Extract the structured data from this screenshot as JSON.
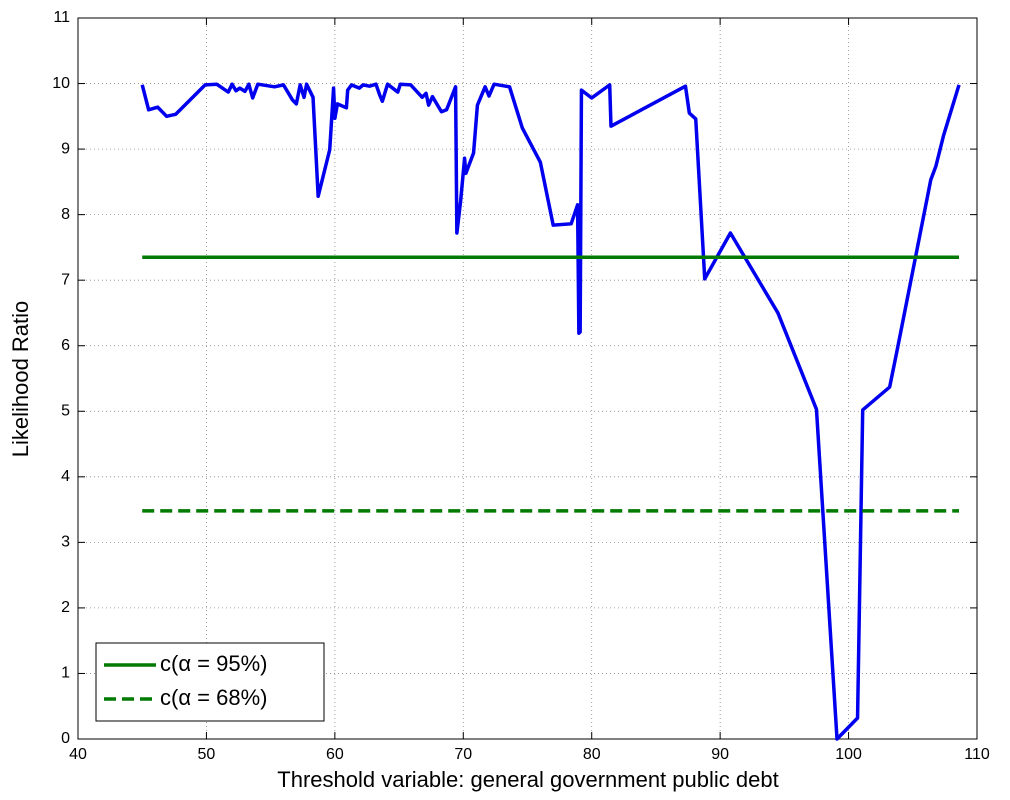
{
  "chart_data": {
    "type": "line",
    "xlabel": "Threshold variable: general government public debt",
    "ylabel": "Likelihood Ratio",
    "xlim": [
      40,
      110
    ],
    "xticks": [
      40,
      50,
      60,
      70,
      80,
      90,
      100,
      110
    ],
    "ylim": [
      0,
      11
    ],
    "yticks": [
      0,
      1,
      2,
      3,
      4,
      5,
      6,
      7,
      8,
      9,
      10,
      11
    ],
    "grid": true,
    "legend": "lower left",
    "series": [
      {
        "color": "#0000ee",
        "dashed": false,
        "x": [
          45.0,
          45.5,
          46.2,
          46.9,
          47.6,
          49.9,
          50.8,
          51.7,
          52.0,
          52.3,
          52.6,
          53.0,
          53.3,
          53.6,
          54.0,
          55.3,
          56.0,
          56.7,
          57.0,
          57.3,
          57.6,
          57.8,
          58.3,
          58.7,
          59.6,
          59.9,
          60.0,
          60.2,
          60.9,
          61.0,
          61.3,
          61.9,
          62.2,
          62.7,
          63.2,
          63.5,
          63.7,
          64.1,
          64.9,
          65.1,
          65.9,
          66.8,
          67.1,
          67.3,
          67.6,
          68.3,
          68.7,
          69.4,
          69.5,
          69.8,
          70.1,
          70.2,
          70.8,
          71.1,
          71.7,
          72.0,
          72.4,
          73.6,
          74.6,
          76.0,
          77.0,
          78.4,
          78.9,
          79.0,
          79.1,
          79.2,
          80.0,
          81.4,
          81.5,
          87.3,
          87.6,
          88.1,
          88.8,
          90.8,
          94.5,
          97.5,
          99.1,
          100.7,
          101.1,
          103.2,
          103.8,
          106.4,
          106.8,
          107.4,
          108.6
        ],
        "values": [
          9.98,
          9.6,
          9.64,
          9.5,
          9.53,
          9.98,
          9.99,
          9.87,
          9.99,
          9.89,
          9.93,
          9.88,
          9.99,
          9.78,
          9.99,
          9.95,
          9.98,
          9.75,
          9.69,
          9.98,
          9.79,
          9.99,
          9.79,
          8.28,
          8.99,
          9.93,
          9.47,
          9.69,
          9.63,
          9.9,
          9.98,
          9.93,
          9.98,
          9.96,
          9.99,
          9.82,
          9.73,
          9.99,
          9.87,
          9.99,
          9.98,
          9.79,
          9.85,
          9.67,
          9.8,
          9.57,
          9.6,
          9.95,
          7.72,
          8.22,
          8.86,
          8.63,
          8.94,
          9.67,
          9.95,
          9.81,
          9.99,
          9.95,
          9.32,
          8.8,
          7.84,
          7.86,
          8.15,
          6.19,
          6.21,
          9.9,
          9.78,
          9.98,
          9.35,
          9.96,
          9.55,
          9.46,
          7.02,
          7.72,
          6.5,
          5.03,
          0,
          0.32,
          5.02,
          5.37,
          5.95,
          8.53,
          8.74,
          9.21,
          9.98
        ]
      },
      {
        "name": "c(α = 95%)",
        "color": "#007a00",
        "dashed": false,
        "x": [
          45.0,
          108.6
        ],
        "values": [
          7.35,
          7.35
        ]
      },
      {
        "name": "c(α = 68%)",
        "color": "#007a00",
        "dashed": true,
        "x": [
          45.0,
          108.6
        ],
        "values": [
          3.48,
          3.48
        ]
      }
    ]
  }
}
